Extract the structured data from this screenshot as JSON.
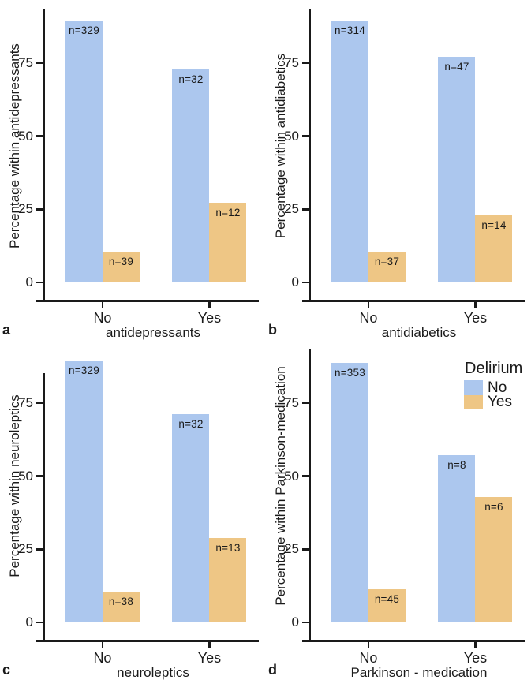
{
  "figure": {
    "colors": {
      "delirium_no": "#acc7ee",
      "delirium_yes": "#eec685",
      "axis": "#1a1a1a",
      "text": "#1a1a1a",
      "background": "#ffffff"
    },
    "legend": {
      "title": "Delirium",
      "position": "top-right-of-panel-d",
      "items": [
        {
          "label": "No",
          "color": "#acc7ee"
        },
        {
          "label": "Yes",
          "color": "#eec685"
        }
      ]
    }
  },
  "chart_data": [
    {
      "type": "bar",
      "panel": "a",
      "title": "",
      "ylabel": "Percentage within antidepressants",
      "xlabel": "antidepressants",
      "categories": [
        "No",
        "Yes"
      ],
      "yticks": [
        0,
        25,
        50,
        75
      ],
      "ylim": [
        0,
        93.3
      ],
      "grid": false,
      "series": [
        {
          "name": "No",
          "color": "#acc7ee",
          "values": [
            89.4,
            72.7
          ],
          "bar_labels": [
            "n=329",
            "n=32"
          ]
        },
        {
          "name": "Yes",
          "color": "#eec685",
          "values": [
            10.6,
            27.3
          ],
          "bar_labels": [
            "n=39",
            "n=12"
          ]
        }
      ]
    },
    {
      "type": "bar",
      "panel": "b",
      "title": "",
      "ylabel": "Percentage within antidiabetics",
      "xlabel": "antidiabetics",
      "categories": [
        "No",
        "Yes"
      ],
      "yticks": [
        0,
        25,
        50,
        75
      ],
      "ylim": [
        0,
        93.3
      ],
      "grid": false,
      "series": [
        {
          "name": "No",
          "color": "#acc7ee",
          "values": [
            89.5,
            77.0
          ],
          "bar_labels": [
            "n=314",
            "n=47"
          ]
        },
        {
          "name": "Yes",
          "color": "#eec685",
          "values": [
            10.5,
            23.0
          ],
          "bar_labels": [
            "n=37",
            "n=14"
          ]
        }
      ]
    },
    {
      "type": "bar",
      "panel": "c",
      "title": "",
      "ylabel": "Percentage within neuroleptics",
      "xlabel": "neuroleptics",
      "categories": [
        "No",
        "Yes"
      ],
      "yticks": [
        0,
        25,
        50,
        75
      ],
      "ylim": [
        0,
        93.3
      ],
      "grid": false,
      "series": [
        {
          "name": "No",
          "color": "#acc7ee",
          "values": [
            89.6,
            71.1
          ],
          "bar_labels": [
            "n=329",
            "n=32"
          ]
        },
        {
          "name": "Yes",
          "color": "#eec685",
          "values": [
            10.4,
            28.9
          ],
          "bar_labels": [
            "n=38",
            "n=13"
          ]
        }
      ]
    },
    {
      "type": "bar",
      "panel": "d",
      "title": "",
      "ylabel": "Percentage within Parkinson-medication",
      "xlabel": "Parkinson - medication",
      "categories": [
        "No",
        "Yes"
      ],
      "yticks": [
        0,
        25,
        50,
        75
      ],
      "ylim": [
        0,
        93.3
      ],
      "grid": false,
      "legend_shown": true,
      "series": [
        {
          "name": "No",
          "color": "#acc7ee",
          "values": [
            88.7,
            57.1
          ],
          "bar_labels": [
            "n=353",
            "n=8"
          ]
        },
        {
          "name": "Yes",
          "color": "#eec685",
          "values": [
            11.3,
            42.9
          ],
          "bar_labels": [
            "n=45",
            "n=6"
          ]
        }
      ]
    }
  ]
}
